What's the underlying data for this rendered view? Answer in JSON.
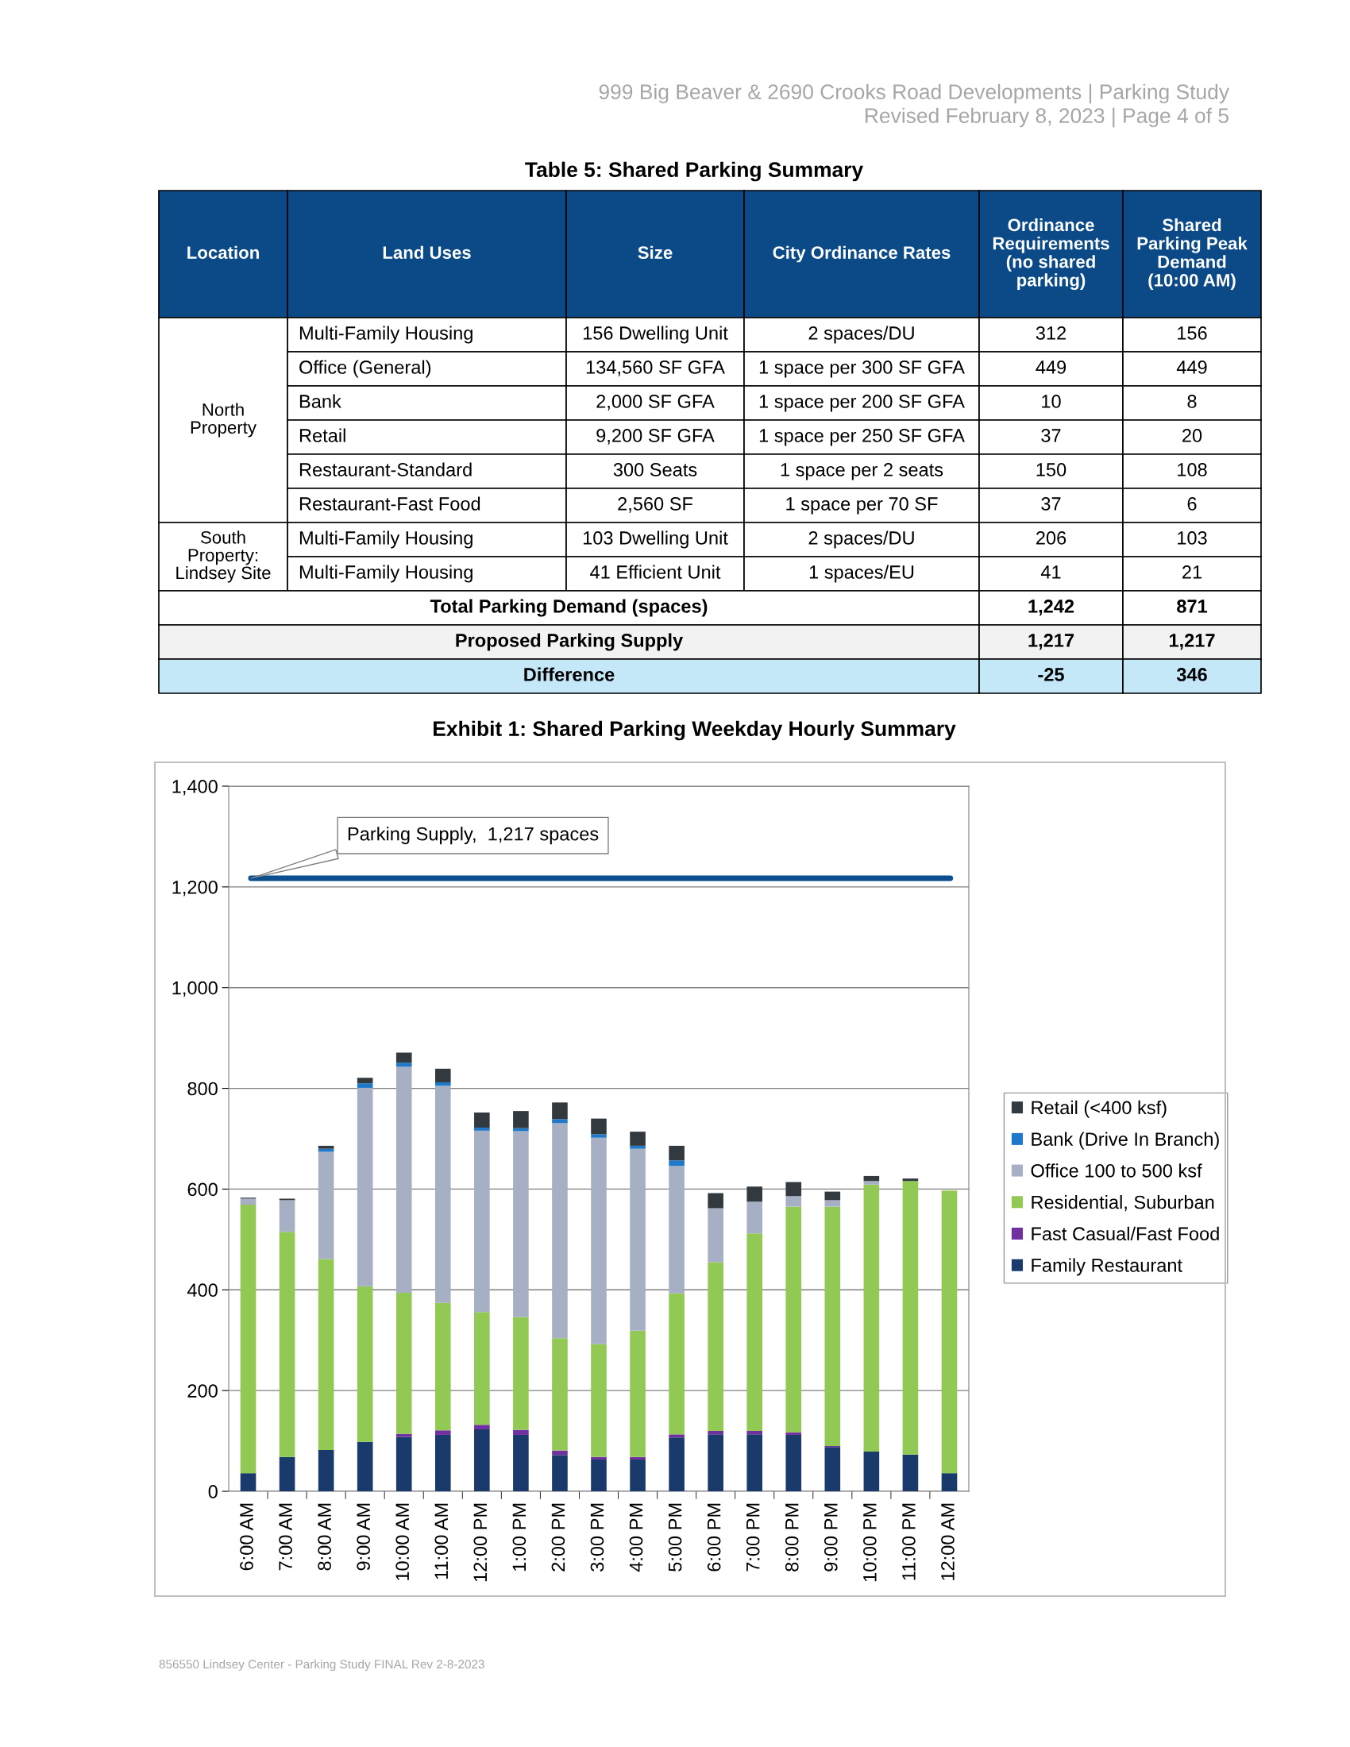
{
  "chart_data": [
    {
      "type": "other",
      "title": "Table 5: Shared Parking Summary",
      "categories": [
        "Location",
        "Land Uses",
        "Size",
        "City Ordinance Rates",
        "Ordinance Requirements (no shared parking)",
        "Shared Parking Peak Demand (10:00 AM)"
      ],
      "cell_labels": [
        [
          "North Property",
          "Multi-Family Housing",
          "156 Dwelling Unit",
          "2 spaces/DU",
          "312",
          "156"
        ],
        [
          null,
          "Office (General)",
          "134,560 SF GFA",
          "1 space per 300 SF GFA",
          "449",
          "449"
        ],
        [
          null,
          "Bank",
          "2,000 SF GFA",
          "1 space per 200 SF GFA",
          "10",
          "8"
        ],
        [
          null,
          "Retail",
          "9,200 SF GFA",
          "1 space per 250 SF GFA",
          "37",
          "20"
        ],
        [
          null,
          "Restaurant-Standard",
          "300 Seats",
          "1 space per 2 seats",
          "150",
          "108"
        ],
        [
          null,
          "Restaurant-Fast Food",
          "2,560 SF",
          "1 space per 70 SF",
          "37",
          "6"
        ],
        [
          "South Property: Lindsey Site",
          "Multi-Family Housing",
          "103 Dwelling Unit",
          "2 spaces/DU",
          "206",
          "103"
        ],
        [
          null,
          "Multi-Family Housing",
          "41 Efficient Unit",
          "1 spaces/EU",
          "41",
          "21"
        ],
        [
          "Total Parking Demand (spaces)",
          null,
          null,
          null,
          "1,242",
          "871"
        ],
        [
          "Proposed Parking Supply",
          null,
          null,
          null,
          "1,217",
          "1,217"
        ],
        [
          "Difference",
          null,
          null,
          null,
          "-25",
          "346"
        ]
      ],
      "annotations": [
        "999 Big Beaver & 2690 Crooks Road Developments | Parking Study",
        "Revised February 8, 2023 | Page 4 of 5",
        "856550 Lindsey Center - Parking Study FINAL Rev 2-8-2023"
      ]
    },
    {
      "type": "bar",
      "stacked": true,
      "title": "Exhibit 1: Shared Parking Weekday Hourly Summary",
      "categories": [
        "6:00 AM",
        "7:00 AM",
        "8:00 AM",
        "9:00 AM",
        "10:00 AM",
        "11:00 AM",
        "12:00 PM",
        "1:00 PM",
        "2:00 PM",
        "3:00 PM",
        "4:00 PM",
        "5:00 PM",
        "6:00 PM",
        "7:00 PM",
        "8:00 PM",
        "9:00 PM",
        "10:00 PM",
        "11:00 PM",
        "12:00 AM"
      ],
      "series": [
        {
          "name": "Family Restaurant",
          "color": "#1a3a6c",
          "values": [
            36,
            68,
            82,
            98,
            108,
            112,
            123,
            112,
            72,
            63,
            63,
            107,
            113,
            113,
            112,
            88,
            79,
            73,
            36
          ]
        },
        {
          "name": "Fast Casual/Fast Food",
          "color": "#7030a0",
          "values": [
            0,
            0,
            0,
            0,
            6,
            9,
            9,
            10,
            9,
            5,
            5,
            6,
            7,
            7,
            5,
            2,
            0,
            0,
            0
          ]
        },
        {
          "name": "Residential, Suburban",
          "color": "#92c854",
          "values": [
            533,
            447,
            379,
            309,
            280,
            253,
            224,
            224,
            223,
            224,
            251,
            280,
            335,
            392,
            448,
            475,
            530,
            543,
            561
          ]
        },
        {
          "name": "Office 100 to 500 ksf",
          "color": "#a6afc4",
          "values": [
            12,
            63,
            213,
            394,
            449,
            431,
            360,
            369,
            427,
            410,
            361,
            253,
            107,
            63,
            21,
            13,
            7,
            0,
            0
          ]
        },
        {
          "name": "Bank (Drive In Branch)",
          "color": "#1f78c8",
          "values": [
            0,
            0,
            6,
            9,
            8,
            7,
            6,
            6,
            8,
            7,
            6,
            11,
            0,
            0,
            0,
            0,
            0,
            0,
            0
          ]
        },
        {
          "name": "Retail (<400 ksf)",
          "color": "#333a3f",
          "values": [
            2,
            3,
            6,
            11,
            20,
            27,
            30,
            34,
            33,
            31,
            28,
            29,
            30,
            30,
            28,
            17,
            10,
            5,
            0
          ]
        }
      ],
      "ylim": [
        0,
        1400
      ],
      "yticks": [
        0,
        200,
        400,
        600,
        800,
        {
          "value": 1000,
          "label": "1,000"
        },
        {
          "value": 1200,
          "label": "1,200"
        },
        {
          "value": 1400,
          "label": "1,400"
        }
      ],
      "grid": "y",
      "legend": "right",
      "ref_lines": [
        {
          "axis": "y",
          "value": 1217,
          "label": "Parking Supply,  1,217 spaces",
          "color": "#0b4f91"
        }
      ]
    }
  ]
}
